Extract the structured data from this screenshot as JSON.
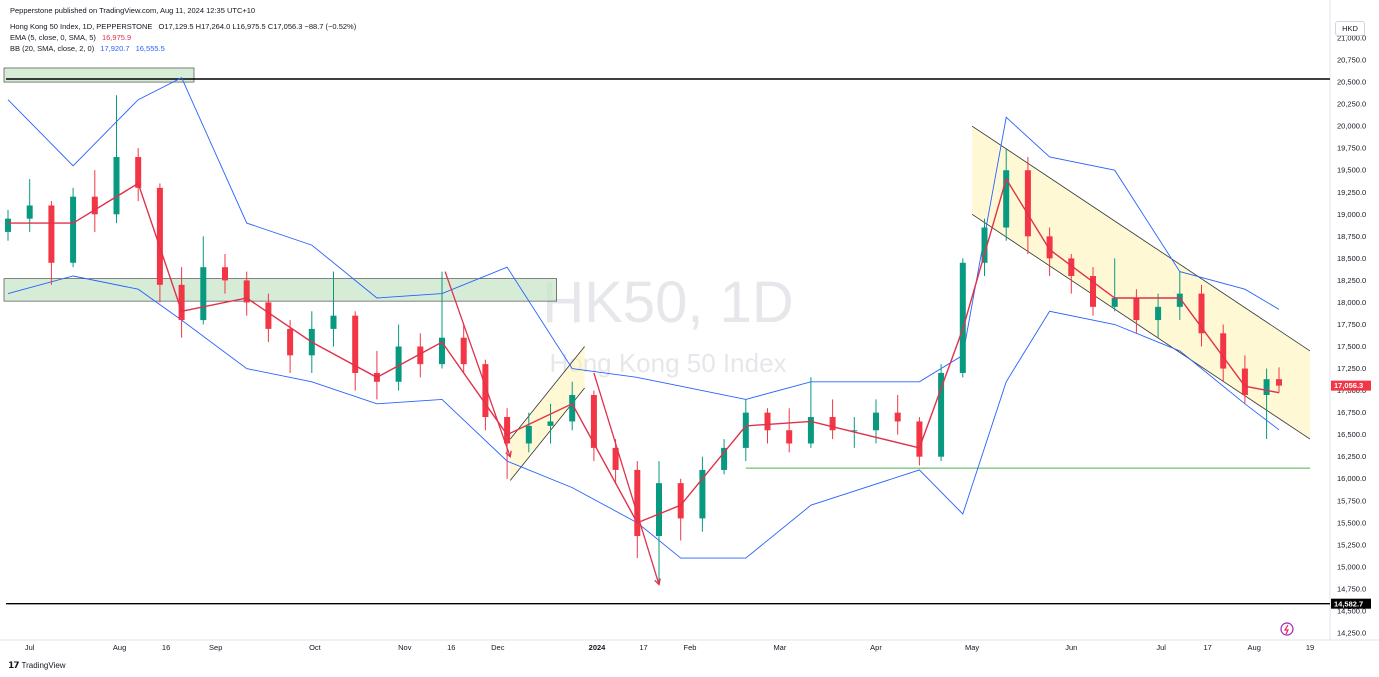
{
  "header": {
    "publisher": "Pepperstone published on TradingView.com, Aug 11, 2024 12:35 UTC+10",
    "symbol": "Hong Kong 50 Index, 1D, PEPPERSTONE",
    "ohlc": "O17,129.5 H17,264.0 L16,975.5 C17,056.3 −88.7 (−0.52%)",
    "ema_label": "EMA (5, close, 0, SMA, 5)",
    "ema_value": "16,975.9",
    "bb_label": "BB (20, SMA, close, 2, 0)",
    "bb_upper": "17,920.7",
    "bb_lower": "16,555.5",
    "currency": "HKD"
  },
  "watermark": {
    "main": "HK50, 1D",
    "sub": "Hong Kong 50 Index"
  },
  "branding": {
    "logo_text": "TradingView"
  },
  "chart_data": {
    "type": "line",
    "series_kind": "candlestick",
    "y_axis": {
      "range": [
        14250,
        21000
      ],
      "ticks": [
        "21,000.0",
        "20,750.0",
        "20,500.0",
        "20,250.0",
        "20,000.0",
        "19,750.0",
        "19,500.0",
        "19,250.0",
        "19,000.0",
        "18,750.0",
        "18,500.0",
        "18,250.0",
        "18,000.0",
        "17,750.0",
        "17,500.0",
        "17,250.0",
        "17,000.0",
        "16,750.0",
        "16,500.0",
        "16,250.0",
        "16,000.0",
        "15,750.0",
        "15,500.0",
        "15,250.0",
        "15,000.0",
        "14,750.0",
        "14,500.0",
        "14,250.0"
      ],
      "position": "right"
    },
    "x_axis": {
      "labels": [
        "Jul",
        "Aug",
        "16",
        "Sep",
        "Oct",
        "Nov",
        "16",
        "Dec",
        "2024",
        "17",
        "Feb",
        "Mar",
        "Apr",
        "May",
        "Jun",
        "Jul",
        "17",
        "Aug",
        "19"
      ]
    },
    "current_price": {
      "value": 17056.3,
      "label": "17,056.3",
      "color": "#f23645"
    },
    "horizontal_levels": [
      {
        "value": 20535,
        "color": "#000000"
      },
      {
        "value": 14582.7,
        "label": "14,582.7",
        "color": "#000000"
      },
      {
        "value": 16120,
        "color": "#4caf50"
      }
    ],
    "zones": [
      {
        "from_date": "2023-06-26",
        "to_date": "2023-08-25",
        "low": 20500,
        "high": 20660,
        "color": "#c8e6c9"
      },
      {
        "from_date": "2023-06-26",
        "to_date": "2023-12-20",
        "low": 18015,
        "high": 18270,
        "color": "#c8e6c9"
      }
    ],
    "channels": [
      {
        "start": [
          "2023-12-05",
          16450
        ],
        "end": [
          "2023-12-29",
          17500
        ],
        "width": 470,
        "color": "#fff3b0"
      },
      {
        "start": [
          "2024-05-02",
          20000
        ],
        "end": [
          "2024-08-19",
          17450
        ],
        "width": 1000,
        "color": "#fff3b0"
      }
    ],
    "arrows": [
      {
        "points": [
          [
            "2023-11-14",
            18350
          ],
          [
            "2023-12-05",
            16250
          ]
        ],
        "color": "#e0314b"
      },
      {
        "points": [
          [
            "2024-01-01",
            17200
          ],
          [
            "2024-01-22",
            14800
          ]
        ],
        "color": "#e0314b"
      }
    ],
    "candles": [
      {
        "d": "2023-06-26",
        "o": 18800,
        "h": 19050,
        "l": 18700,
        "c": 18950
      },
      {
        "d": "2023-07-03",
        "o": 18950,
        "h": 19400,
        "l": 18800,
        "c": 19100
      },
      {
        "d": "2023-07-10",
        "o": 19100,
        "h": 19150,
        "l": 18200,
        "c": 18450
      },
      {
        "d": "2023-07-17",
        "o": 18450,
        "h": 19300,
        "l": 18400,
        "c": 19200
      },
      {
        "d": "2023-07-24",
        "o": 19200,
        "h": 19500,
        "l": 18800,
        "c": 19000
      },
      {
        "d": "2023-07-31",
        "o": 19000,
        "h": 20350,
        "l": 18900,
        "c": 19650
      },
      {
        "d": "2023-08-07",
        "o": 19650,
        "h": 19750,
        "l": 19150,
        "c": 19300
      },
      {
        "d": "2023-08-14",
        "o": 19300,
        "h": 19350,
        "l": 18000,
        "c": 18200
      },
      {
        "d": "2023-08-21",
        "o": 18200,
        "h": 18400,
        "l": 17600,
        "c": 17800
      },
      {
        "d": "2023-08-28",
        "o": 17800,
        "h": 18750,
        "l": 17750,
        "c": 18400
      },
      {
        "d": "2023-09-04",
        "o": 18400,
        "h": 18550,
        "l": 18100,
        "c": 18250
      },
      {
        "d": "2023-09-11",
        "o": 18250,
        "h": 18350,
        "l": 17850,
        "c": 18000
      },
      {
        "d": "2023-09-18",
        "o": 18000,
        "h": 18100,
        "l": 17550,
        "c": 17700
      },
      {
        "d": "2023-09-25",
        "o": 17700,
        "h": 17800,
        "l": 17200,
        "c": 17400
      },
      {
        "d": "2023-10-02",
        "o": 17400,
        "h": 17900,
        "l": 17200,
        "c": 17700
      },
      {
        "d": "2023-10-09",
        "o": 17700,
        "h": 18350,
        "l": 17500,
        "c": 17850
      },
      {
        "d": "2023-10-16",
        "o": 17850,
        "h": 17900,
        "l": 17000,
        "c": 17200
      },
      {
        "d": "2023-10-23",
        "o": 17200,
        "h": 17450,
        "l": 16900,
        "c": 17100
      },
      {
        "d": "2023-10-30",
        "o": 17100,
        "h": 17750,
        "l": 17000,
        "c": 17500
      },
      {
        "d": "2023-11-06",
        "o": 17500,
        "h": 17650,
        "l": 17150,
        "c": 17300
      },
      {
        "d": "2023-11-13",
        "o": 17300,
        "h": 18350,
        "l": 17250,
        "c": 17600
      },
      {
        "d": "2023-11-20",
        "o": 17600,
        "h": 17750,
        "l": 17200,
        "c": 17300
      },
      {
        "d": "2023-11-27",
        "o": 17300,
        "h": 17350,
        "l": 16550,
        "c": 16700
      },
      {
        "d": "2023-12-04",
        "o": 16700,
        "h": 16800,
        "l": 16000,
        "c": 16400
      },
      {
        "d": "2023-12-11",
        "o": 16400,
        "h": 16750,
        "l": 16300,
        "c": 16600
      },
      {
        "d": "2023-12-18",
        "o": 16600,
        "h": 16850,
        "l": 16400,
        "c": 16650
      },
      {
        "d": "2023-12-25",
        "o": 16650,
        "h": 17100,
        "l": 16550,
        "c": 16950
      },
      {
        "d": "2024-01-01",
        "o": 16950,
        "h": 17000,
        "l": 16200,
        "c": 16350
      },
      {
        "d": "2024-01-08",
        "o": 16350,
        "h": 16450,
        "l": 15950,
        "c": 16100
      },
      {
        "d": "2024-01-15",
        "o": 16100,
        "h": 16200,
        "l": 15100,
        "c": 15350
      },
      {
        "d": "2024-01-22",
        "o": 15350,
        "h": 16200,
        "l": 14800,
        "c": 15950
      },
      {
        "d": "2024-01-29",
        "o": 15950,
        "h": 16000,
        "l": 15300,
        "c": 15550
      },
      {
        "d": "2024-02-05",
        "o": 15550,
        "h": 16250,
        "l": 15400,
        "c": 16100
      },
      {
        "d": "2024-02-12",
        "o": 16100,
        "h": 16450,
        "l": 16050,
        "c": 16350
      },
      {
        "d": "2024-02-19",
        "o": 16350,
        "h": 16900,
        "l": 16200,
        "c": 16750
      },
      {
        "d": "2024-02-26",
        "o": 16750,
        "h": 16800,
        "l": 16400,
        "c": 16550
      },
      {
        "d": "2024-03-04",
        "o": 16550,
        "h": 16800,
        "l": 16300,
        "c": 16400
      },
      {
        "d": "2024-03-11",
        "o": 16400,
        "h": 17150,
        "l": 16350,
        "c": 16700
      },
      {
        "d": "2024-03-18",
        "o": 16700,
        "h": 16900,
        "l": 16450,
        "c": 16550
      },
      {
        "d": "2024-03-25",
        "o": 16550,
        "h": 16700,
        "l": 16350,
        "c": 16550
      },
      {
        "d": "2024-04-01",
        "o": 16550,
        "h": 16900,
        "l": 16400,
        "c": 16750
      },
      {
        "d": "2024-04-08",
        "o": 16750,
        "h": 16950,
        "l": 16500,
        "c": 16650
      },
      {
        "d": "2024-04-15",
        "o": 16650,
        "h": 16700,
        "l": 16150,
        "c": 16250
      },
      {
        "d": "2024-04-22",
        "o": 16250,
        "h": 17300,
        "l": 16200,
        "c": 17200
      },
      {
        "d": "2024-04-29",
        "o": 17200,
        "h": 18500,
        "l": 17150,
        "c": 18450
      },
      {
        "d": "2024-05-06",
        "o": 18450,
        "h": 18950,
        "l": 18300,
        "c": 18850
      },
      {
        "d": "2024-05-13",
        "o": 18850,
        "h": 19750,
        "l": 18700,
        "c": 19500
      },
      {
        "d": "2024-05-20",
        "o": 19500,
        "h": 19650,
        "l": 18550,
        "c": 18750
      },
      {
        "d": "2024-05-27",
        "o": 18750,
        "h": 18850,
        "l": 18300,
        "c": 18500
      },
      {
        "d": "2024-06-03",
        "o": 18500,
        "h": 18550,
        "l": 18100,
        "c": 18300
      },
      {
        "d": "2024-06-10",
        "o": 18300,
        "h": 18400,
        "l": 17850,
        "c": 17950
      },
      {
        "d": "2024-06-17",
        "o": 17950,
        "h": 18500,
        "l": 17900,
        "c": 18050
      },
      {
        "d": "2024-06-24",
        "o": 18050,
        "h": 18150,
        "l": 17650,
        "c": 17800
      },
      {
        "d": "2024-07-01",
        "o": 17800,
        "h": 18100,
        "l": 17600,
        "c": 17950
      },
      {
        "d": "2024-07-08",
        "o": 17950,
        "h": 18350,
        "l": 17800,
        "c": 18100
      },
      {
        "d": "2024-07-15",
        "o": 18100,
        "h": 18200,
        "l": 17500,
        "c": 17650
      },
      {
        "d": "2024-07-22",
        "o": 17650,
        "h": 17750,
        "l": 17100,
        "c": 17250
      },
      {
        "d": "2024-07-29",
        "o": 17250,
        "h": 17400,
        "l": 16850,
        "c": 16950
      },
      {
        "d": "2024-08-05",
        "o": 16950,
        "h": 17250,
        "l": 16450,
        "c": 17129.5
      },
      {
        "d": "2024-08-09",
        "o": 17129.5,
        "h": 17264,
        "l": 16975.5,
        "c": 17056.3
      }
    ],
    "ema": [
      [
        "2023-06-26",
        18900
      ],
      [
        "2023-07-17",
        18900
      ],
      [
        "2023-08-07",
        19350
      ],
      [
        "2023-08-21",
        17900
      ],
      [
        "2023-09-11",
        18050
      ],
      [
        "2023-10-02",
        17550
      ],
      [
        "2023-10-23",
        17150
      ],
      [
        "2023-11-13",
        17550
      ],
      [
        "2023-12-04",
        16500
      ],
      [
        "2023-12-25",
        16850
      ],
      [
        "2024-01-15",
        15500
      ],
      [
        "2024-01-29",
        15700
      ],
      [
        "2024-02-19",
        16600
      ],
      [
        "2024-03-11",
        16650
      ],
      [
        "2024-04-15",
        16350
      ],
      [
        "2024-04-29",
        17700
      ],
      [
        "2024-05-13",
        19400
      ],
      [
        "2024-05-27",
        18600
      ],
      [
        "2024-06-17",
        18050
      ],
      [
        "2024-07-08",
        18050
      ],
      [
        "2024-07-29",
        17050
      ],
      [
        "2024-08-09",
        16975.9
      ]
    ],
    "bb_upper": [
      [
        "2023-06-26",
        20300
      ],
      [
        "2023-07-17",
        19550
      ],
      [
        "2023-08-07",
        20300
      ],
      [
        "2023-08-21",
        20550
      ],
      [
        "2023-09-11",
        18900
      ],
      [
        "2023-10-02",
        18650
      ],
      [
        "2023-10-23",
        18050
      ],
      [
        "2023-11-13",
        18100
      ],
      [
        "2023-12-04",
        18400
      ],
      [
        "2023-12-25",
        17250
      ],
      [
        "2024-01-15",
        17150
      ],
      [
        "2024-01-29",
        17050
      ],
      [
        "2024-02-19",
        16900
      ],
      [
        "2024-03-11",
        17100
      ],
      [
        "2024-04-15",
        17100
      ],
      [
        "2024-04-29",
        17400
      ],
      [
        "2024-05-13",
        20100
      ],
      [
        "2024-05-27",
        19650
      ],
      [
        "2024-06-17",
        19500
      ],
      [
        "2024-07-08",
        18350
      ],
      [
        "2024-07-29",
        18150
      ],
      [
        "2024-08-09",
        17920.7
      ]
    ],
    "bb_lower": [
      [
        "2023-06-26",
        18100
      ],
      [
        "2023-07-17",
        18300
      ],
      [
        "2023-08-07",
        18150
      ],
      [
        "2023-08-21",
        17800
      ],
      [
        "2023-09-11",
        17250
      ],
      [
        "2023-10-02",
        17100
      ],
      [
        "2023-10-23",
        16850
      ],
      [
        "2023-11-13",
        16900
      ],
      [
        "2023-12-04",
        16200
      ],
      [
        "2023-12-25",
        15900
      ],
      [
        "2024-01-15",
        15500
      ],
      [
        "2024-01-29",
        15100
      ],
      [
        "2024-02-19",
        15100
      ],
      [
        "2024-03-11",
        15700
      ],
      [
        "2024-04-15",
        16100
      ],
      [
        "2024-04-29",
        15600
      ],
      [
        "2024-05-13",
        17100
      ],
      [
        "2024-05-27",
        17900
      ],
      [
        "2024-06-17",
        17750
      ],
      [
        "2024-07-08",
        17450
      ],
      [
        "2024-07-29",
        16850
      ],
      [
        "2024-08-09",
        16555.5
      ]
    ]
  }
}
